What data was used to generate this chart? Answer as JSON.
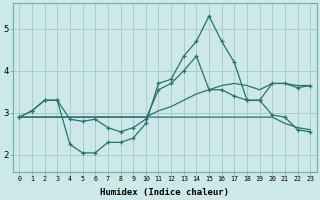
{
  "title": "",
  "xlabel": "Humidex (Indice chaleur)",
  "bg_color": "#cce8e8",
  "grid_color": "#aacccc",
  "line_color": "#2d7070",
  "xlim": [
    -0.5,
    23.5
  ],
  "ylim": [
    1.6,
    5.6
  ],
  "xticks": [
    0,
    1,
    2,
    3,
    4,
    5,
    6,
    7,
    8,
    9,
    10,
    11,
    12,
    13,
    14,
    15,
    16,
    17,
    18,
    19,
    20,
    21,
    22,
    23
  ],
  "yticks": [
    2,
    3,
    4,
    5
  ],
  "series": [
    {
      "x": [
        0,
        1,
        2,
        3,
        4,
        5,
        6,
        7,
        8,
        9,
        10,
        11,
        12,
        13,
        14,
        15,
        16,
        17,
        18,
        19,
        20,
        21,
        22,
        23
      ],
      "y": [
        2.9,
        2.9,
        2.9,
        2.9,
        2.9,
        2.9,
        2.9,
        2.9,
        2.9,
        2.9,
        2.9,
        3.05,
        3.15,
        3.3,
        3.45,
        3.55,
        3.65,
        3.7,
        3.65,
        3.55,
        3.7,
        3.7,
        3.65,
        3.65
      ],
      "marker": false
    },
    {
      "x": [
        0,
        1,
        2,
        3,
        4,
        5,
        6,
        7,
        8,
        9,
        10,
        11,
        12,
        13,
        14,
        15,
        16,
        17,
        18,
        19,
        20,
        21,
        22,
        23
      ],
      "y": [
        2.9,
        2.9,
        2.9,
        2.9,
        2.9,
        2.9,
        2.9,
        2.9,
        2.9,
        2.9,
        2.9,
        2.9,
        2.9,
        2.9,
        2.9,
        2.9,
        2.9,
        2.9,
        2.9,
        2.9,
        2.9,
        2.75,
        2.65,
        2.6
      ],
      "marker": false
    },
    {
      "x": [
        0,
        1,
        2,
        3,
        4,
        5,
        6,
        7,
        8,
        9,
        10,
        11,
        12,
        13,
        14,
        15,
        16,
        17,
        18,
        19,
        20,
        21,
        22,
        23
      ],
      "y": [
        2.9,
        3.05,
        3.3,
        3.3,
        2.25,
        2.05,
        2.05,
        2.3,
        2.3,
        2.4,
        2.75,
        3.7,
        3.8,
        4.35,
        4.7,
        5.3,
        4.7,
        4.2,
        3.3,
        3.3,
        2.95,
        2.9,
        2.6,
        2.55
      ],
      "marker": true
    },
    {
      "x": [
        0,
        1,
        2,
        3,
        4,
        5,
        6,
        7,
        8,
        9,
        10,
        11,
        12,
        13,
        14,
        15,
        16,
        17,
        18,
        19,
        20,
        21,
        22,
        23
      ],
      "y": [
        2.9,
        3.05,
        3.3,
        3.3,
        2.85,
        2.8,
        2.85,
        2.65,
        2.55,
        2.65,
        2.85,
        3.55,
        3.7,
        4.0,
        4.35,
        3.55,
        3.55,
        3.4,
        3.3,
        3.3,
        3.7,
        3.7,
        3.6,
        3.65
      ],
      "marker": true
    }
  ]
}
